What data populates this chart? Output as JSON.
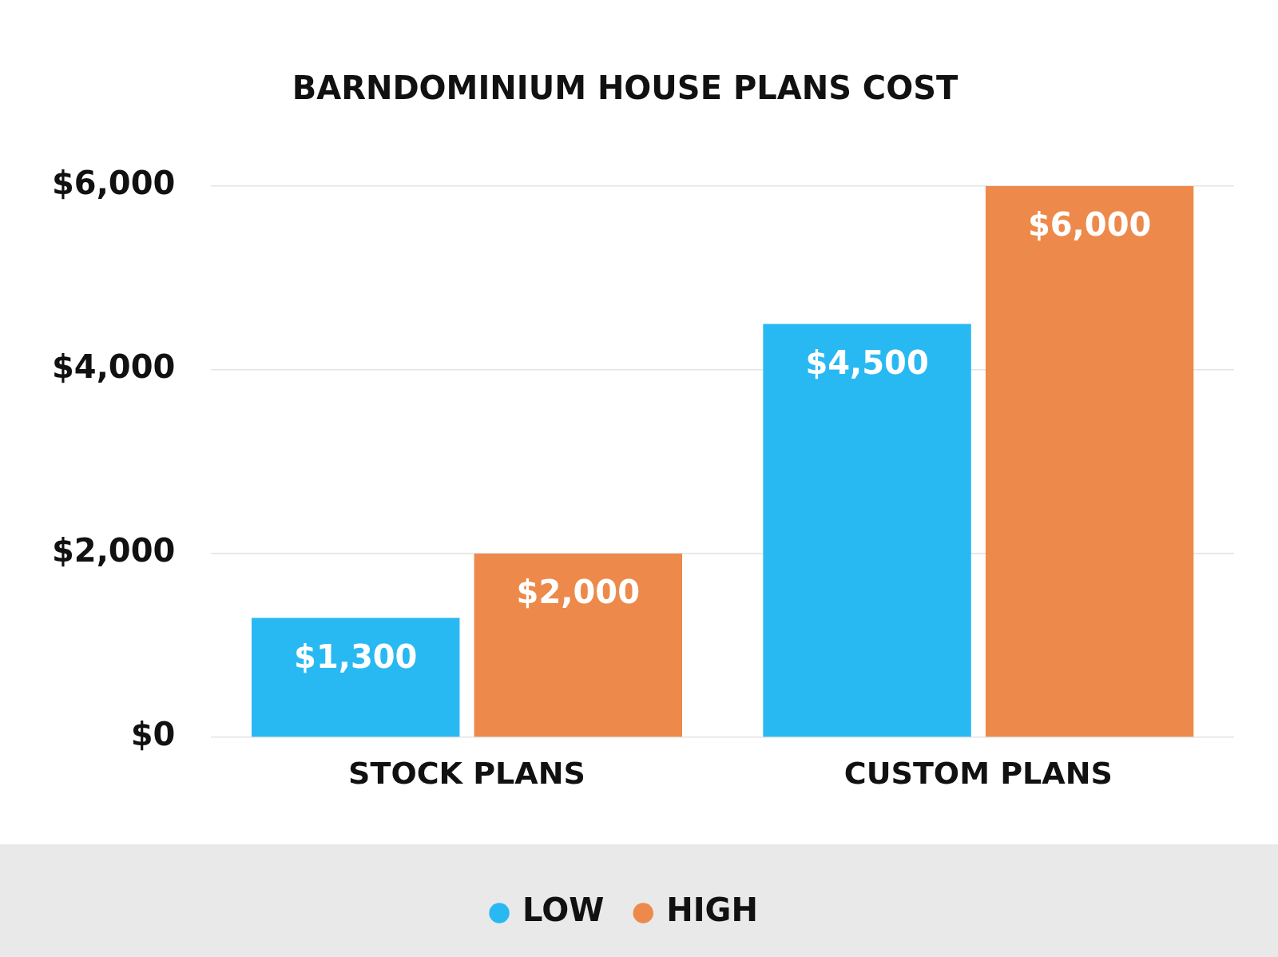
{
  "chart_data": {
    "type": "bar",
    "title": "BARNDOMINIUM HOUSE PLANS COST",
    "categories": [
      "STOCK PLANS",
      "CUSTOM PLANS"
    ],
    "series": [
      {
        "name": "LOW",
        "color": "#29b9f2",
        "values": [
          1300,
          4500
        ],
        "value_labels": [
          "$1,300",
          "$4,500"
        ]
      },
      {
        "name": "HIGH",
        "color": "#ed8a4b",
        "values": [
          2000,
          6000
        ],
        "value_labels": [
          "$2,000",
          "$6,000"
        ]
      }
    ],
    "ylim": [
      0,
      6000
    ],
    "yticks": [
      {
        "value": 0,
        "label": "$0"
      },
      {
        "value": 2000,
        "label": "$2,000"
      },
      {
        "value": 4000,
        "label": "$4,000"
      },
      {
        "value": 6000,
        "label": "$6,000"
      }
    ],
    "grid": "y",
    "legend": "bottom"
  }
}
